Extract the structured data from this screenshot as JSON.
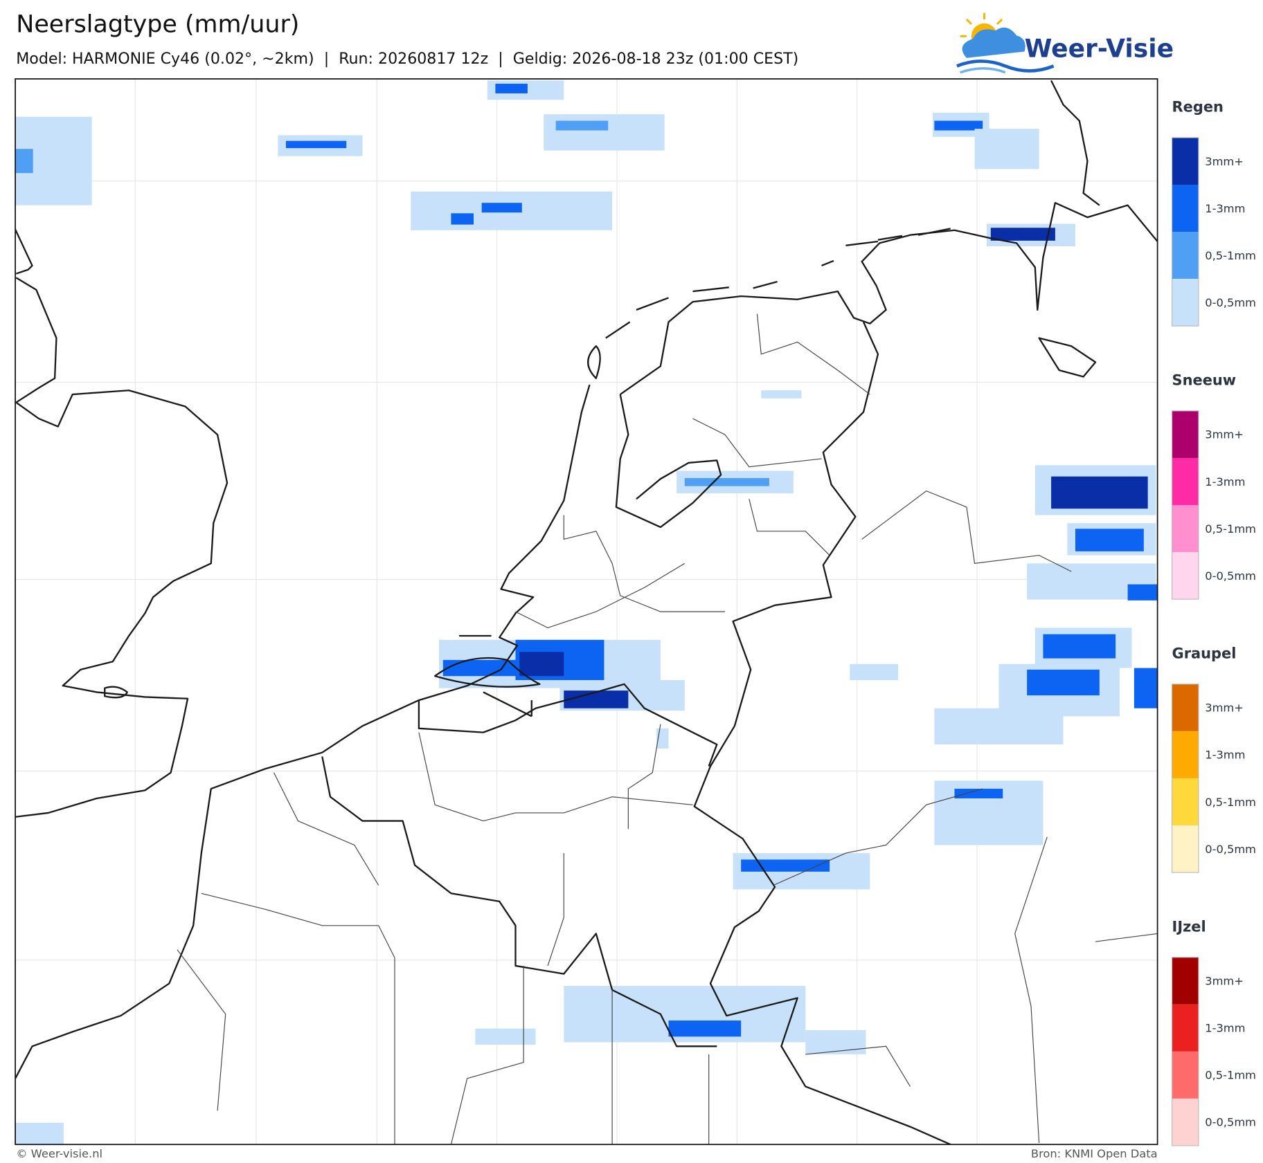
{
  "header": {
    "title": "Neerslagtype (mm/uur)",
    "subtitle": "Model: HARMONIE Cy46 (0.02°, ~2km)  |  Run: 20260817 12z  |  Geldig: 2026-08-18 23z (01:00 CEST)",
    "logo": "Weer-Visie"
  },
  "legend": {
    "groups": [
      {
        "title": "Regen",
        "items": [
          {
            "label": "3mm+",
            "color": "#0a2ea8"
          },
          {
            "label": "1-3mm",
            "color": "#0d63f2"
          },
          {
            "label": "0,5-1mm",
            "color": "#4f9ff5"
          },
          {
            "label": "0-0,5mm",
            "color": "#c8e1fa"
          }
        ]
      },
      {
        "title": "Sneeuw",
        "items": [
          {
            "label": "3mm+",
            "color": "#ae006c"
          },
          {
            "label": "1-3mm",
            "color": "#ff2aa5"
          },
          {
            "label": "0,5-1mm",
            "color": "#ff8fcf"
          },
          {
            "label": "0-0,5mm",
            "color": "#ffd6ee"
          }
        ]
      },
      {
        "title": "Graupel",
        "items": [
          {
            "label": "3mm+",
            "color": "#dc6800"
          },
          {
            "label": "1-3mm",
            "color": "#ffaa00"
          },
          {
            "label": "0,5-1mm",
            "color": "#ffd83c"
          },
          {
            "label": "0-0,5mm",
            "color": "#fff3c6"
          }
        ]
      },
      {
        "title": "IJzel",
        "items": [
          {
            "label": "3mm+",
            "color": "#a20000"
          },
          {
            "label": "1-3mm",
            "color": "#eb2020"
          },
          {
            "label": "0,5-1mm",
            "color": "#ff6b6b"
          },
          {
            "label": "0-0,5mm",
            "color": "#ffd2d2"
          }
        ]
      }
    ]
  },
  "footer": {
    "credit": "© Weer-visie.nl",
    "source": "Bron: KNMI Open Data"
  }
}
